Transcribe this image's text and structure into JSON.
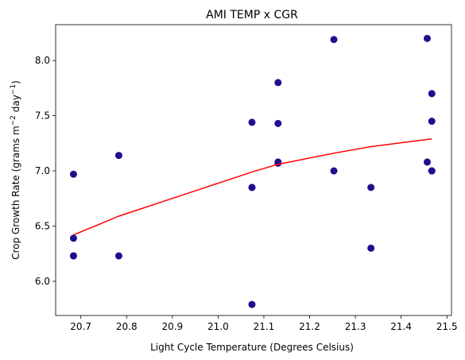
{
  "chart_data": {
    "type": "scatter",
    "title": "AMI TEMP x CGR",
    "xlabel": "Light Cycle Temperature (Degrees Celsius)",
    "ylabel_parts": {
      "before_m": "Crop Growth Rate (grams m",
      "m_exp": "−2",
      "between": " day",
      "day_exp": "−1",
      "after": ")"
    },
    "xlim": [
      20.645,
      21.51
    ],
    "ylim": [
      5.69,
      8.325
    ],
    "x_ticks": [
      20.7,
      20.8,
      20.9,
      21.0,
      21.1,
      21.2,
      21.3,
      21.4,
      21.5
    ],
    "x_tick_labels": [
      "20.7",
      "20.8",
      "20.9",
      "21.0",
      "21.1",
      "21.2",
      "21.3",
      "21.4",
      "21.5"
    ],
    "y_ticks": [
      6.0,
      6.5,
      7.0,
      7.5,
      8.0
    ],
    "y_tick_labels": [
      "6.0",
      "6.5",
      "7.0",
      "7.5",
      "8.0"
    ],
    "grid": false,
    "point_color": "#1f0f8f",
    "line_color": "#ff0000",
    "points": [
      {
        "x": 20.684,
        "y": 6.97
      },
      {
        "x": 20.684,
        "y": 6.39
      },
      {
        "x": 20.684,
        "y": 6.23
      },
      {
        "x": 20.684,
        "y": 6.23
      },
      {
        "x": 20.783,
        "y": 7.14
      },
      {
        "x": 20.783,
        "y": 6.23
      },
      {
        "x": 21.074,
        "y": 7.44
      },
      {
        "x": 21.074,
        "y": 6.85
      },
      {
        "x": 21.074,
        "y": 6.85
      },
      {
        "x": 21.074,
        "y": 5.79
      },
      {
        "x": 21.131,
        "y": 7.8
      },
      {
        "x": 21.131,
        "y": 7.43
      },
      {
        "x": 21.131,
        "y": 7.08
      },
      {
        "x": 21.131,
        "y": 7.07
      },
      {
        "x": 21.253,
        "y": 8.19
      },
      {
        "x": 21.253,
        "y": 7.0
      },
      {
        "x": 21.334,
        "y": 6.85
      },
      {
        "x": 21.334,
        "y": 6.3
      },
      {
        "x": 21.457,
        "y": 8.2
      },
      {
        "x": 21.457,
        "y": 7.08
      },
      {
        "x": 21.467,
        "y": 7.7
      },
      {
        "x": 21.467,
        "y": 7.45
      },
      {
        "x": 21.467,
        "y": 7.0
      },
      {
        "x": 21.467,
        "y": 7.0
      }
    ],
    "trend_line": [
      {
        "x": 20.684,
        "y": 6.42
      },
      {
        "x": 20.783,
        "y": 6.59
      },
      {
        "x": 21.074,
        "y": 6.99
      },
      {
        "x": 21.131,
        "y": 7.06
      },
      {
        "x": 21.253,
        "y": 7.16
      },
      {
        "x": 21.334,
        "y": 7.22
      },
      {
        "x": 21.467,
        "y": 7.29
      }
    ]
  }
}
